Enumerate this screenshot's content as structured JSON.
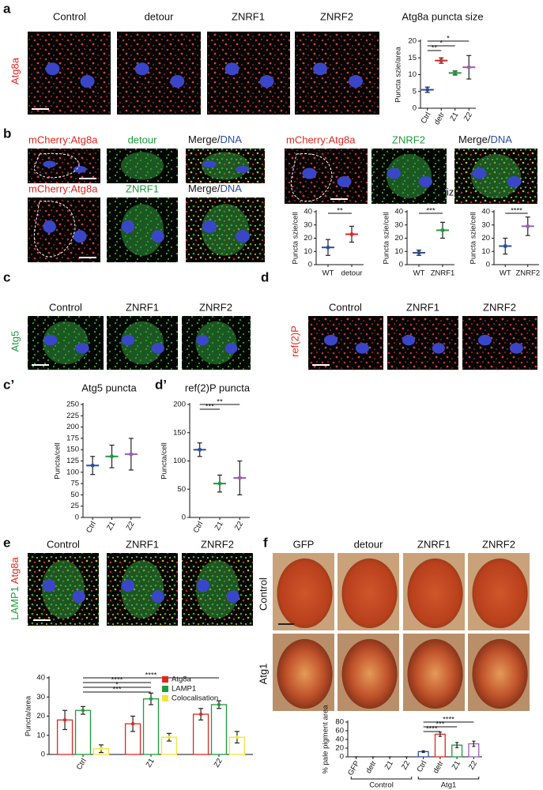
{
  "panel_labels": [
    "a",
    "b",
    "c",
    "d",
    "c’",
    "d’",
    "e",
    "f"
  ],
  "a": {
    "images": [
      "Control",
      "detour",
      "ZNRF1",
      "ZNRF2"
    ],
    "stain": "Atg8a"
  },
  "b": {
    "top_left": [
      "mCherry:Atg8a",
      "detour",
      "Merge/",
      "DNA"
    ],
    "bottom_left": [
      "mCherry:Atg8a",
      "ZNRF1",
      "Merge/",
      "DNA"
    ],
    "top_right": [
      "mCherry:Atg8a",
      "ZNRF2",
      "Merge/",
      "DNA"
    ],
    "chart_title": "Atg8a puncta size"
  },
  "c": {
    "images": [
      "Control",
      "ZNRF1",
      "ZNRF2"
    ],
    "stain": "Atg5"
  },
  "d": {
    "images": [
      "Control",
      "ZNRF1",
      "ZNRF2"
    ],
    "stain": "ref(2)P"
  },
  "e": {
    "images": [
      "Control",
      "ZNRF1",
      "ZNRF2"
    ],
    "stains": [
      "LAMP1",
      "Atg8a"
    ]
  },
  "f": {
    "columns": [
      "GFP",
      "detour",
      "ZNRF1",
      "ZNRF2"
    ],
    "rows": [
      "Control",
      "Atg1"
    ]
  },
  "chart_data": [
    {
      "type": "dot",
      "title": "Atg8a puncta size",
      "ylabel": "Puncta szie/area",
      "categories": [
        "Ctrl",
        "detr",
        "Z1",
        "Z2"
      ],
      "values": [
        5.5,
        14.2,
        10.5,
        12.2
      ],
      "errors": [
        0.8,
        0.8,
        0.6,
        3.5
      ],
      "colors": [
        "#2c4e9e",
        "#e2261f",
        "#1e9b3c",
        "#9b5fb5"
      ],
      "ylim": [
        0,
        20
      ],
      "yticks": [
        0,
        5,
        10,
        15,
        20
      ],
      "comparisons": [
        {
          "label": "**",
          "between": [
            0,
            1
          ]
        },
        {
          "label": "*",
          "between": [
            0,
            2
          ]
        },
        {
          "label": "*",
          "between": [
            0,
            3
          ]
        }
      ]
    },
    {
      "type": "dot",
      "ylabel": "Puncta szie/cell",
      "categories": [
        "WT",
        "detour"
      ],
      "values": [
        13,
        23
      ],
      "errors": [
        6,
        6
      ],
      "colors": [
        "#2c4e9e",
        "#e2261f"
      ],
      "ylim": [
        0,
        40
      ],
      "yticks": [
        0,
        10,
        20,
        30,
        40
      ],
      "comparisons": [
        {
          "label": "**",
          "between": [
            0,
            1
          ]
        }
      ]
    },
    {
      "type": "dot",
      "ylabel": "Puncta szie/cell",
      "categories": [
        "WT",
        "ZNRF1"
      ],
      "values": [
        9,
        26
      ],
      "errors": [
        2,
        6
      ],
      "colors": [
        "#2c4e9e",
        "#1e9b3c"
      ],
      "ylim": [
        0,
        40
      ],
      "yticks": [
        0,
        10,
        20,
        30,
        40
      ],
      "comparisons": [
        {
          "label": "***",
          "between": [
            0,
            1
          ]
        }
      ]
    },
    {
      "type": "dot",
      "ylabel": "Puncta szie/cell",
      "categories": [
        "WT",
        "ZNRF2"
      ],
      "values": [
        14,
        29
      ],
      "errors": [
        6,
        7
      ],
      "colors": [
        "#2c4e9e",
        "#9b5fb5"
      ],
      "ylim": [
        0,
        40
      ],
      "yticks": [
        0,
        10,
        20,
        30,
        40
      ],
      "comparisons": [
        {
          "label": "****",
          "between": [
            0,
            1
          ]
        }
      ]
    },
    {
      "type": "dot",
      "title": "Atg5 puncta",
      "ylabel": "Puncta/cell",
      "categories": [
        "Ctrl",
        "Z1",
        "Z2"
      ],
      "values": [
        115,
        135,
        140
      ],
      "errors": [
        20,
        25,
        35
      ],
      "colors": [
        "#2c4e9e",
        "#1e9b3c",
        "#9b5fb5"
      ],
      "ylim": [
        0,
        250
      ],
      "yticks": [
        0,
        25,
        50,
        75,
        100,
        125,
        150,
        175,
        200,
        225,
        250
      ],
      "comparisons": []
    },
    {
      "type": "dot",
      "title": "ref(2)P puncta",
      "ylabel": "Puncta/cell",
      "categories": [
        "Ctrl",
        "Z1",
        "Z2"
      ],
      "values": [
        120,
        60,
        70
      ],
      "errors": [
        12,
        15,
        30
      ],
      "colors": [
        "#2c4e9e",
        "#1e9b3c",
        "#9b5fb5"
      ],
      "ylim": [
        0,
        200
      ],
      "yticks": [
        0,
        50,
        100,
        150,
        200
      ],
      "comparisons": [
        {
          "label": "***",
          "between": [
            0,
            1
          ]
        },
        {
          "label": "**",
          "between": [
            0,
            2
          ]
        }
      ]
    },
    {
      "type": "grouped",
      "ylabel": "Puncta/area",
      "categories": [
        "Ctrl",
        "Z1",
        "Z2"
      ],
      "series": [
        {
          "name": "Atg8a",
          "color": "#e2261f",
          "values": [
            18,
            16,
            21
          ],
          "errors": [
            5,
            4,
            3
          ]
        },
        {
          "name": "LAMP1",
          "color": "#1e9b3c",
          "values": [
            23,
            29,
            26
          ],
          "errors": [
            2,
            3,
            2
          ]
        },
        {
          "name": "Colocalisation",
          "color": "#f2e43a",
          "values": [
            3,
            9,
            9
          ],
          "errors": [
            2,
            2,
            3
          ]
        }
      ],
      "ylim": [
        0,
        40
      ],
      "yticks": [
        0,
        10,
        20,
        30,
        40
      ],
      "comparisons": [
        {
          "label": "***",
          "between": [
            0,
            1
          ]
        },
        {
          "label": "*",
          "between": [
            0,
            1
          ]
        },
        {
          "label": "****",
          "between": [
            0,
            1
          ]
        },
        {
          "label": "****",
          "between": [
            0,
            2
          ]
        }
      ]
    },
    {
      "type": "bar",
      "ylabel": "% pale pigment area",
      "categories": [
        "GFP",
        "detr",
        "Z1",
        "Z2",
        "Ctrl",
        "detr",
        "Z1",
        "Z2"
      ],
      "values": [
        0,
        0,
        0,
        0,
        12,
        52,
        27,
        30
      ],
      "errors": [
        0,
        0,
        0,
        0,
        2,
        5,
        6,
        6
      ],
      "colors": [
        "#2c4e9e",
        "#e2261f",
        "#1e9b3c",
        "#9b5fb5",
        "#2c4e9e",
        "#e2261f",
        "#1e9b3c",
        "#9b5fb5"
      ],
      "ylim": [
        0,
        80
      ],
      "yticks": [
        0,
        20,
        40,
        60,
        80
      ],
      "comparisons": [
        {
          "label": "****",
          "between": [
            4,
            5
          ]
        },
        {
          "label": "***",
          "between": [
            4,
            6
          ]
        },
        {
          "label": "****",
          "between": [
            4,
            7
          ]
        }
      ],
      "groups": [
        {
          "label": "Control",
          "span": [
            0,
            3
          ]
        },
        {
          "label": "Atg1",
          "span": [
            4,
            7
          ]
        }
      ]
    }
  ]
}
